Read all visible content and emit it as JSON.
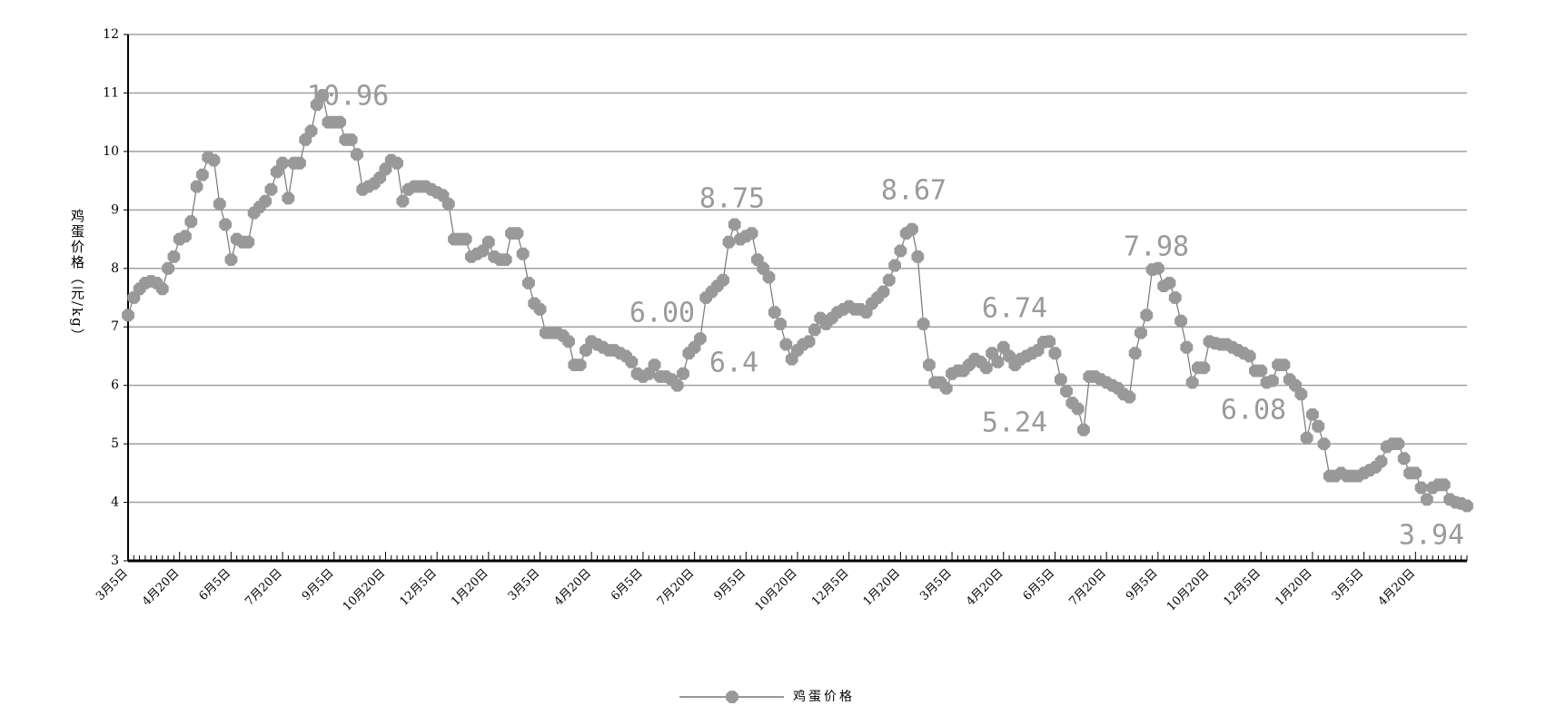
{
  "chart_data": {
    "type": "line",
    "y_label": "鸡蛋价格（元/kg）",
    "categories": [
      "3月5日",
      null,
      null,
      null,
      null,
      null,
      null,
      null,
      null,
      "4月20日",
      null,
      null,
      null,
      null,
      null,
      null,
      null,
      null,
      "6月5日",
      null,
      null,
      null,
      null,
      null,
      null,
      null,
      null,
      "7月20日",
      null,
      null,
      null,
      null,
      null,
      null,
      null,
      null,
      "9月5日",
      null,
      null,
      null,
      null,
      null,
      null,
      null,
      null,
      "10月20日",
      null,
      null,
      null,
      null,
      null,
      null,
      null,
      null,
      "12月5日",
      null,
      null,
      null,
      null,
      null,
      null,
      null,
      null,
      "1月20日",
      null,
      null,
      null,
      null,
      null,
      null,
      null,
      null,
      "3月5日",
      null,
      null,
      null,
      null,
      null,
      null,
      null,
      null,
      "4月20日",
      null,
      null,
      null,
      null,
      null,
      null,
      null,
      null,
      "6月5日",
      null,
      null,
      null,
      null,
      null,
      null,
      null,
      null,
      "7月20日",
      null,
      null,
      null,
      null,
      null,
      null,
      null,
      null,
      "9月5日",
      null,
      null,
      null,
      null,
      null,
      null,
      null,
      null,
      "10月20日",
      null,
      null,
      null,
      null,
      null,
      null,
      null,
      null,
      "12月5日",
      null,
      null,
      null,
      null,
      null,
      null,
      null,
      null,
      "1月20日",
      null,
      null,
      null,
      null,
      null,
      null,
      null,
      null,
      "3月5日",
      null,
      null,
      null,
      null,
      null,
      null,
      null,
      null,
      "4月20日",
      null,
      null,
      null,
      null,
      null,
      null,
      null,
      null,
      "6月5日",
      null,
      null,
      null,
      null,
      null,
      null,
      null,
      null,
      "7月20日",
      null,
      null,
      null,
      null,
      null,
      null,
      null,
      null,
      "9月5日",
      null,
      null,
      null,
      null,
      null,
      null,
      null,
      null,
      "10月20日",
      null,
      null,
      null,
      null,
      null,
      null,
      null,
      null,
      "12月5日",
      null,
      null,
      null,
      null,
      null,
      null,
      null,
      null,
      "1月20日",
      null,
      null,
      null,
      null,
      null,
      null,
      null,
      null,
      "3月5日",
      null,
      null,
      null,
      null,
      null,
      null,
      null,
      null,
      "4月20日",
      null,
      null,
      null,
      null,
      null,
      null,
      null,
      null,
      null
    ],
    "series": [
      {
        "name": "鸡蛋价格",
        "color": "#999999",
        "values": [
          7.2,
          7.5,
          7.65,
          7.75,
          7.78,
          7.75,
          7.65,
          8.0,
          8.2,
          8.5,
          8.55,
          8.8,
          9.4,
          9.6,
          9.9,
          9.85,
          9.1,
          8.75,
          8.15,
          8.5,
          8.45,
          8.45,
          8.95,
          9.05,
          9.15,
          9.35,
          9.65,
          9.8,
          9.2,
          9.8,
          9.8,
          10.2,
          10.35,
          10.8,
          10.96,
          10.5,
          10.5,
          10.5,
          10.2,
          10.2,
          9.95,
          9.35,
          9.4,
          9.45,
          9.55,
          9.7,
          9.85,
          9.8,
          9.15,
          9.35,
          9.4,
          9.4,
          9.4,
          9.35,
          9.3,
          9.25,
          9.1,
          8.5,
          8.5,
          8.5,
          8.2,
          8.25,
          8.3,
          8.45,
          8.2,
          8.15,
          8.15,
          8.6,
          8.6,
          8.25,
          7.75,
          7.4,
          7.3,
          6.9,
          6.9,
          6.9,
          6.85,
          6.75,
          6.35,
          6.35,
          6.6,
          6.75,
          6.7,
          6.65,
          6.6,
          6.6,
          6.55,
          6.5,
          6.4,
          6.2,
          6.15,
          6.2,
          6.35,
          6.15,
          6.15,
          6.1,
          6.0,
          6.2,
          6.55,
          6.65,
          6.8,
          7.5,
          7.6,
          7.7,
          7.8,
          8.45,
          8.75,
          8.5,
          8.55,
          8.6,
          8.15,
          8.0,
          7.85,
          7.25,
          7.05,
          6.7,
          6.45,
          6.6,
          6.7,
          6.75,
          6.95,
          7.15,
          7.05,
          7.15,
          7.25,
          7.3,
          7.35,
          7.3,
          7.3,
          7.25,
          7.4,
          7.5,
          7.6,
          7.8,
          8.05,
          8.3,
          8.6,
          8.67,
          8.2,
          7.05,
          6.35,
          6.05,
          6.05,
          5.95,
          6.2,
          6.25,
          6.25,
          6.35,
          6.45,
          6.4,
          6.3,
          6.55,
          6.4,
          6.65,
          6.5,
          6.35,
          6.45,
          6.5,
          6.55,
          6.6,
          6.74,
          6.75,
          6.55,
          6.1,
          5.9,
          5.7,
          5.6,
          5.24,
          6.15,
          6.15,
          6.1,
          6.05,
          6.0,
          5.95,
          5.85,
          5.8,
          6.55,
          6.9,
          7.2,
          7.98,
          8.0,
          7.7,
          7.75,
          7.5,
          7.1,
          6.65,
          6.05,
          6.3,
          6.3,
          6.75,
          6.72,
          6.7,
          6.7,
          6.65,
          6.6,
          6.55,
          6.5,
          6.25,
          6.25,
          6.05,
          6.08,
          6.35,
          6.35,
          6.1,
          6.0,
          5.85,
          5.1,
          5.5,
          5.3,
          5.0,
          4.45,
          4.45,
          4.5,
          4.45,
          4.45,
          4.45,
          4.5,
          4.55,
          4.6,
          4.7,
          4.95,
          5.0,
          5.0,
          4.75,
          4.5,
          4.5,
          4.25,
          4.05,
          4.25,
          4.3,
          4.3,
          4.05,
          4.0,
          3.98,
          3.94
        ]
      }
    ],
    "ylim": [
      3,
      12
    ],
    "yticks": [
      3,
      4,
      5,
      6,
      7,
      8,
      9,
      10,
      11,
      12
    ],
    "grid": true,
    "annotations": [
      "10.96",
      "8.75",
      "8.67",
      "6.00",
      "6.4",
      "6.74",
      "7.98",
      "5.24",
      "6.08",
      "3.94"
    ],
    "legend": "bottom"
  }
}
